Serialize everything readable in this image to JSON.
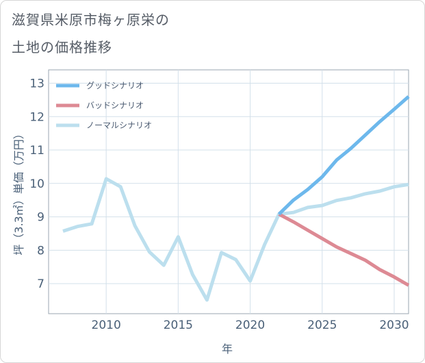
{
  "title_line1": "滋賀県米原市梅ヶ原栄の",
  "title_line2": "土地の価格推移",
  "chart_data": {
    "type": "line",
    "xlabel": "年",
    "ylabel": "坪（3.3㎡）単価（万円）",
    "xlim": [
      2006,
      2031
    ],
    "ylim": [
      6.1,
      13.4
    ],
    "xticks": [
      2010,
      2015,
      2020,
      2025,
      2030
    ],
    "yticks": [
      7,
      8,
      9,
      10,
      11,
      12,
      13
    ],
    "legend_position": "top-left",
    "series": [
      {
        "name": "グッドシナリオ",
        "color": "#6db8ec",
        "x": [
          2022,
          2023,
          2024,
          2025,
          2026,
          2027,
          2028,
          2029,
          2030,
          2031
        ],
        "values": [
          9.08,
          9.5,
          9.82,
          10.2,
          10.7,
          11.05,
          11.45,
          11.85,
          12.22,
          12.6
        ]
      },
      {
        "name": "バッドシナリオ",
        "color": "#dd8a94",
        "x": [
          2022,
          2023,
          2024,
          2025,
          2026,
          2027,
          2028,
          2029,
          2030,
          2031
        ],
        "values": [
          9.08,
          8.85,
          8.6,
          8.35,
          8.1,
          7.9,
          7.7,
          7.42,
          7.2,
          6.95
        ]
      },
      {
        "name": "ノーマルシナリオ",
        "color": "#bcdfee",
        "x": [
          2007,
          2008,
          2009,
          2010,
          2011,
          2012,
          2013,
          2014,
          2015,
          2016,
          2017,
          2018,
          2019,
          2020,
          2021,
          2022,
          2023,
          2024,
          2025,
          2026,
          2027,
          2028,
          2029,
          2030,
          2031
        ],
        "values": [
          8.57,
          8.71,
          8.79,
          10.14,
          9.9,
          8.73,
          7.95,
          7.55,
          8.4,
          7.27,
          6.51,
          7.93,
          7.72,
          7.08,
          8.17,
          9.08,
          9.13,
          9.28,
          9.34,
          9.49,
          9.57,
          9.69,
          9.77,
          9.9,
          9.97
        ]
      }
    ]
  }
}
